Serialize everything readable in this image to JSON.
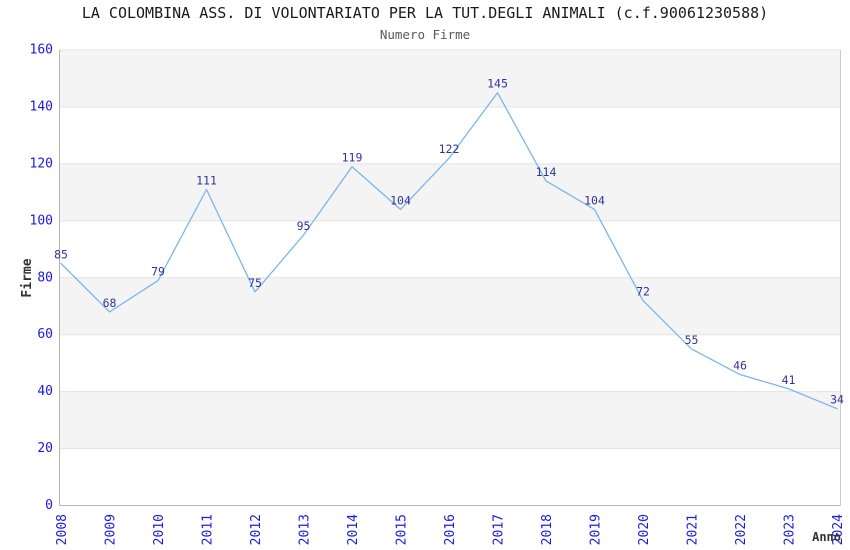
{
  "chart_data": {
    "type": "line",
    "title": "LA COLOMBINA ASS. DI VOLONTARIATO PER LA TUT.DEGLI ANIMALI (c.f.90061230588)",
    "subtitle": "Numero Firme",
    "xlabel": "Anno",
    "ylabel": "Firme",
    "x": [
      "2008",
      "2009",
      "2010",
      "2011",
      "2012",
      "2013",
      "2014",
      "2015",
      "2016",
      "2017",
      "2018",
      "2019",
      "2020",
      "2021",
      "2022",
      "2023",
      "2024"
    ],
    "values": [
      85,
      68,
      79,
      111,
      75,
      95,
      119,
      104,
      122,
      145,
      114,
      104,
      72,
      55,
      46,
      41,
      34
    ],
    "ylim": [
      0,
      160
    ],
    "yticks": [
      0,
      20,
      40,
      60,
      80,
      100,
      120,
      140,
      160
    ],
    "legend": "none",
    "grid": "alternating horizontal bands with light gridlines",
    "data_labels": true,
    "colors": {
      "line": "#7cb5ec",
      "data_label": "#333399",
      "tick_label": "#1a1ae6",
      "band": "#f4f4f4",
      "gridline": "#e3e3e3",
      "axis": "#b5b5b5",
      "frame": "#cccccc",
      "title": "#1a1a1a",
      "subtitle": "#595959",
      "axis_title": "#333333"
    }
  }
}
